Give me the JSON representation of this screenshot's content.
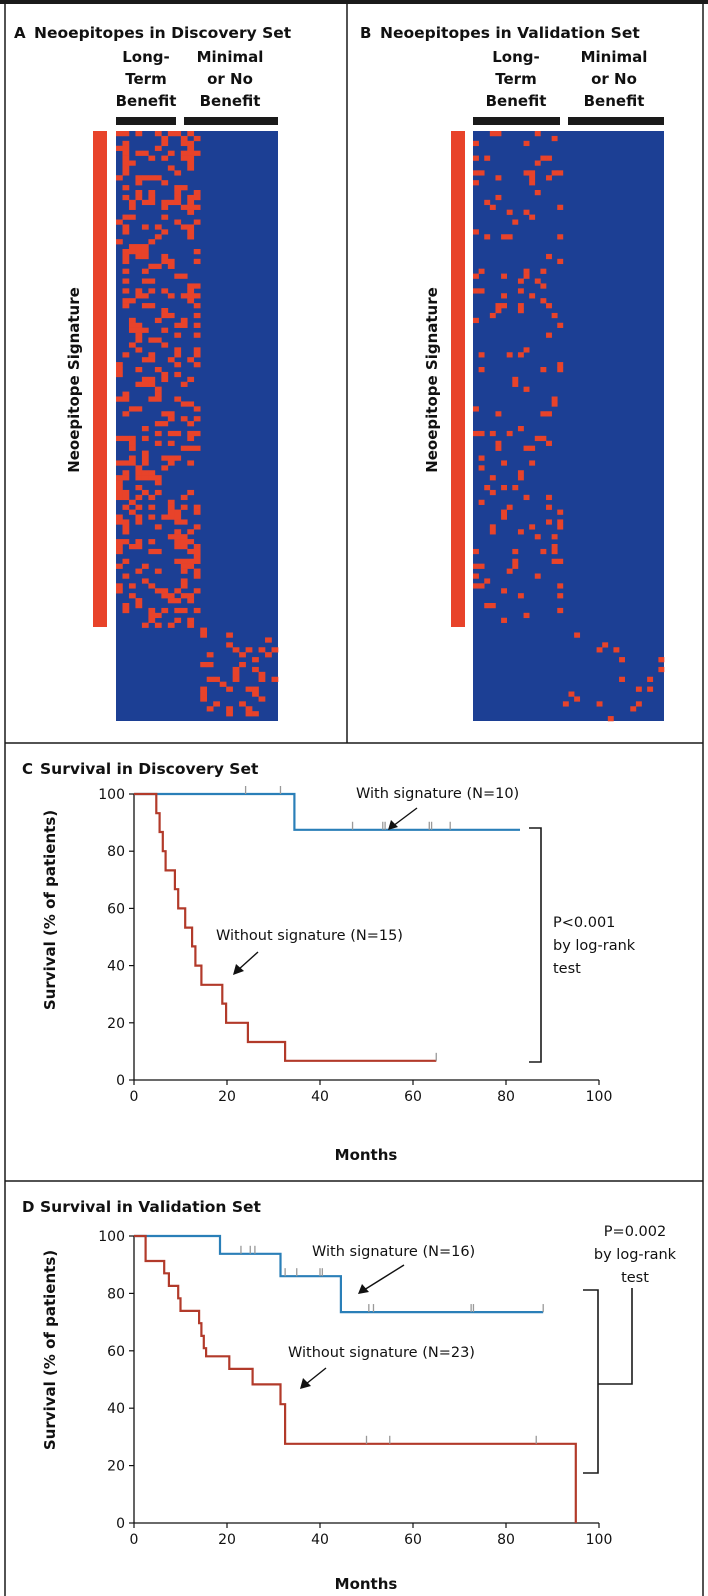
{
  "panels": {
    "a": {
      "letter": "A",
      "title": "Neoepitopes in Discovery Set"
    },
    "b": {
      "letter": "B",
      "title": "Neoepitopes in Validation Set"
    },
    "c": {
      "letter": "C",
      "title": "Survival in Discovery Set"
    },
    "d": {
      "letter": "D",
      "title": "Survival in Validation Set"
    }
  },
  "groups": {
    "long_term": [
      "Long-",
      "Term",
      "Benefit"
    ],
    "minimal": [
      "Minimal",
      "or No",
      "Benefit"
    ]
  },
  "signature_label": "Neoepitope Signature",
  "colors": {
    "heat_bg": "#1c3f94",
    "heat_hit": "#e8432a",
    "with_sig": "#2a7fb8",
    "without_sig": "#b23a2a",
    "bar": "#1a1a1a"
  },
  "chart_data": [
    {
      "type": "heatmap",
      "title": "Neoepitopes in Discovery Set",
      "groups": [
        "Long-Term Benefit",
        "Minimal or No Benefit"
      ],
      "patients": {
        "long_term_benefit": 13,
        "minimal_or_no_benefit": 12
      },
      "signature_rows": 101,
      "other_rows": 19,
      "seed": 11,
      "density_signature": 0.3,
      "density_other": 0.22
    },
    {
      "type": "heatmap",
      "title": "Neoepitopes in Validation Set",
      "groups": [
        "Long-Term Benefit",
        "Minimal or No Benefit"
      ],
      "patients": {
        "long_term_benefit": 16,
        "minimal_or_no_benefit": 18
      },
      "signature_rows": 101,
      "other_rows": 19,
      "seed": 37,
      "density_signature": 0.085,
      "density_other": 0.06
    },
    {
      "type": "line",
      "title": "Survival in Discovery Set",
      "xlabel": "Months",
      "ylabel": "Survival (% of patients)",
      "xlim": [
        0,
        100
      ],
      "ylim": [
        0,
        100
      ],
      "xticks": [
        0,
        20,
        40,
        60,
        80,
        100
      ],
      "yticks": [
        0,
        20,
        40,
        60,
        80,
        100
      ],
      "series": [
        {
          "name": "With signature (N=10)",
          "color": "#2a7fb8",
          "steps": [
            [
              0,
              100
            ],
            [
              34.5,
              87.5
            ],
            [
              83,
              87.5
            ]
          ],
          "censored": [
            24,
            31.5,
            47,
            53.5,
            54,
            63.5,
            64,
            68
          ]
        },
        {
          "name": "Without signature (N=15)",
          "color": "#b23a2a",
          "steps": [
            [
              0,
              100
            ],
            [
              4.8,
              93.3
            ],
            [
              5.5,
              86.7
            ],
            [
              6.2,
              80
            ],
            [
              6.8,
              73.3
            ],
            [
              8.8,
              66.7
            ],
            [
              9.5,
              60
            ],
            [
              11,
              53.3
            ],
            [
              12.5,
              46.7
            ],
            [
              13.2,
              40
            ],
            [
              14.5,
              33.3
            ],
            [
              19,
              26.7
            ],
            [
              19.8,
              20
            ],
            [
              24.5,
              13.3
            ],
            [
              32.5,
              6.7
            ],
            [
              65,
              6.7
            ]
          ],
          "censored": [
            65
          ]
        }
      ],
      "annotation": {
        "text": [
          "P<0.001",
          "by log-rank",
          "test"
        ]
      }
    },
    {
      "type": "line",
      "title": "Survival in Validation Set",
      "xlabel": "Months",
      "ylabel": "Survival (% of patients)",
      "xlim": [
        0,
        100
      ],
      "ylim": [
        0,
        100
      ],
      "xticks": [
        0,
        20,
        40,
        60,
        80,
        100
      ],
      "yticks": [
        0,
        20,
        40,
        60,
        80,
        100
      ],
      "series": [
        {
          "name": "With signature (N=16)",
          "color": "#2a7fb8",
          "steps": [
            [
              0,
              100
            ],
            [
              18.5,
              93.8
            ],
            [
              31.5,
              86
            ],
            [
              44.5,
              73.5
            ],
            [
              88,
              73.5
            ]
          ],
          "censored": [
            23,
            25,
            26,
            32.5,
            35,
            40,
            40.5,
            50.5,
            51.5,
            72.5,
            73,
            88
          ]
        },
        {
          "name": "Without signature (N=23)",
          "color": "#b23a2a",
          "steps": [
            [
              0,
              100
            ],
            [
              2.5,
              91.3
            ],
            [
              6.5,
              87
            ],
            [
              7.5,
              82.6
            ],
            [
              9.5,
              78.3
            ],
            [
              10,
              73.9
            ],
            [
              14,
              69.6
            ],
            [
              14.5,
              65.2
            ],
            [
              15,
              60.9
            ],
            [
              15.5,
              58.1
            ],
            [
              20.5,
              53.7
            ],
            [
              25.5,
              48.3
            ],
            [
              31.5,
              41.4
            ],
            [
              32.5,
              27.6
            ],
            [
              95,
              27.6
            ],
            [
              95,
              0
            ]
          ],
          "censored": [
            50,
            55,
            86.5
          ]
        }
      ],
      "annotation": {
        "text": [
          "P=0.002",
          "by log-rank",
          "test"
        ]
      }
    }
  ]
}
